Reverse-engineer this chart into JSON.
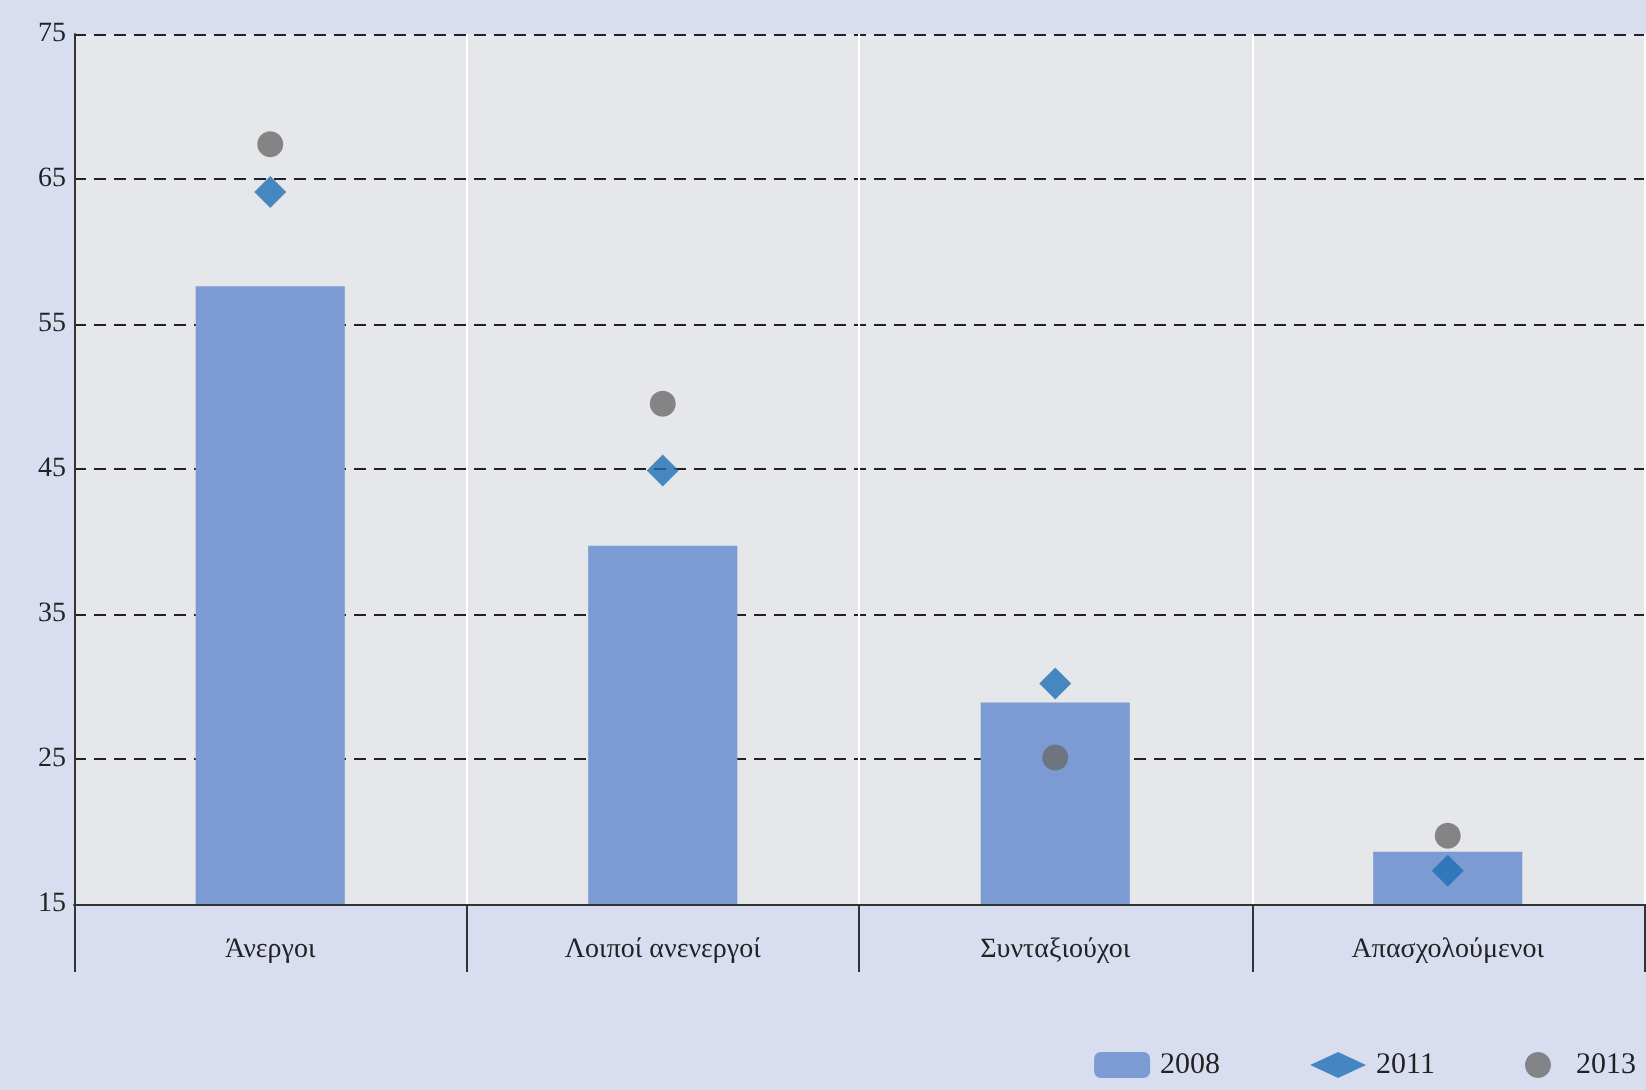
{
  "chart_data": {
    "type": "bar",
    "categories": [
      "Άνεργοι",
      "Λοιποί ανενεργοί",
      "Συνταξιούχοι",
      "Απασχολούμενοι"
    ],
    "series": [
      {
        "name": "2008",
        "color": "#7b9bd2",
        "values": [
          57.6,
          39.7,
          28.9,
          18.6
        ]
      },
      {
        "name": "2011",
        "type": "scatter",
        "marker": "diamond",
        "color": "#1f6fb5",
        "values": [
          64.1,
          44.9,
          30.2,
          17.3
        ]
      },
      {
        "name": "2013",
        "type": "scatter",
        "marker": "circle",
        "color": "#6b6b6b",
        "values": [
          67.4,
          49.5,
          25.1,
          19.7
        ]
      }
    ],
    "ylim": [
      15,
      75
    ],
    "yticks": [
      15,
      25,
      35,
      45,
      55,
      65,
      75
    ],
    "grid": true,
    "legend": "bottom right"
  }
}
